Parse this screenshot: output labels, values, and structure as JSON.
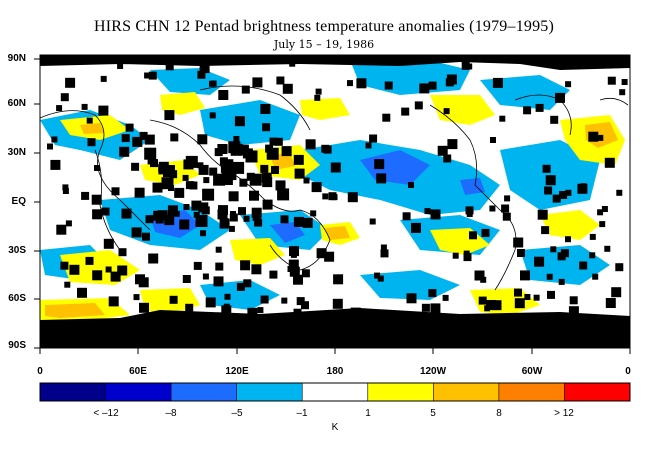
{
  "title": "HIRS CHN 12 Pentad brightness temperature anomalies (1979–1995)",
  "subtitle": "July 15 – 19, 1986",
  "lat_labels": [
    "90N",
    "60N",
    "30N",
    "EQ",
    "30S",
    "60S",
    "90S"
  ],
  "lon_labels": [
    "0",
    "60E",
    "120E",
    "180",
    "120W",
    "60W",
    "0"
  ],
  "colorbar": {
    "labels": [
      "< –12",
      "–8",
      "–5",
      "–1",
      "1",
      "5",
      "8",
      "> 12"
    ],
    "unit": "K",
    "colors": [
      "#00008b",
      "#0000cd",
      "#1e6cff",
      "#00b4f0",
      "#ffffff",
      "#ffff00",
      "#ffc000",
      "#ff8000",
      "#ff0000"
    ]
  },
  "colors": {
    "missing": "#000000",
    "cold": "#00b4f0",
    "colder": "#1e6cff",
    "warm": "#ffff00",
    "warmer": "#ffc000",
    "coast": "#000000"
  }
}
